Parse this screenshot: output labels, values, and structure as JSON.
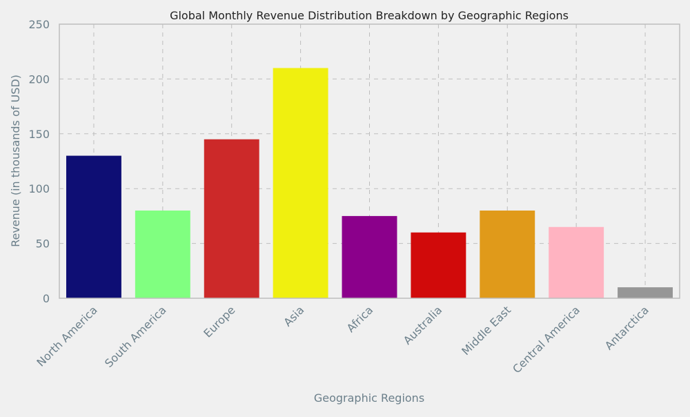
{
  "chart_data": {
    "type": "bar",
    "title": "Global Monthly Revenue Distribution Breakdown by Geographic Regions",
    "xlabel": "Geographic Regions",
    "ylabel": "Revenue (in thousands of USD)",
    "categories": [
      "North America",
      "South America",
      "Europe",
      "Asia",
      "Africa",
      "Australia",
      "Middle East",
      "Central America",
      "Antarctica"
    ],
    "values": [
      130,
      80,
      145,
      210,
      75,
      60,
      80,
      65,
      10
    ],
    "colors": [
      "#0e0e74",
      "#80ff80",
      "#cc2929",
      "#f0f00f",
      "#8b008b",
      "#d10a0a",
      "#e09a1a",
      "#ffb3c1",
      "#969696"
    ],
    "ylim": [
      0,
      250
    ],
    "yticks": [
      0,
      50,
      100,
      150,
      200,
      250
    ],
    "grid": true,
    "legend": "none"
  }
}
